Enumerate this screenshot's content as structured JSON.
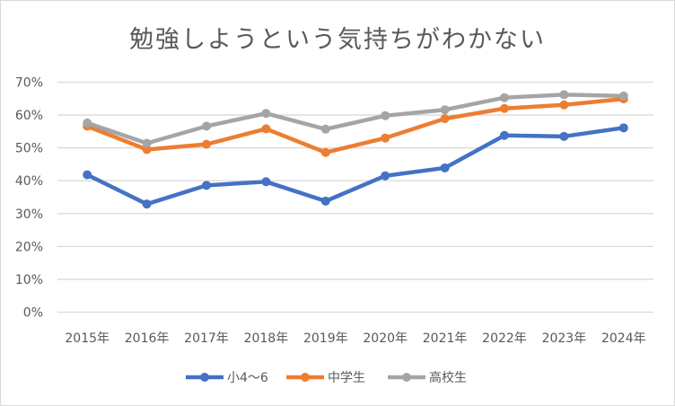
{
  "chart_data": {
    "type": "line",
    "title": "勉強しようという気持ちがわかない",
    "xlabel": "",
    "ylabel": "",
    "categories": [
      "2015年",
      "2016年",
      "2017年",
      "2018年",
      "2019年",
      "2020年",
      "2021年",
      "2022年",
      "2023年",
      "2024年"
    ],
    "ylim": [
      0,
      70
    ],
    "yticks": [
      "0%",
      "10%",
      "20%",
      "30%",
      "40%",
      "50%",
      "60%",
      "70%"
    ],
    "grid": true,
    "legend_position": "bottom",
    "series": [
      {
        "name": "小4〜6",
        "color": "#4472c4",
        "values": [
          41.8,
          32.9,
          38.6,
          39.7,
          33.8,
          41.5,
          43.9,
          53.8,
          53.5,
          56.1
        ]
      },
      {
        "name": "中学生",
        "color": "#ed7d31",
        "values": [
          56.6,
          49.5,
          51.1,
          55.8,
          48.6,
          53.0,
          58.9,
          62.0,
          63.1,
          64.9
        ]
      },
      {
        "name": "高校生",
        "color": "#a5a5a5",
        "values": [
          57.6,
          51.4,
          56.6,
          60.5,
          55.7,
          59.8,
          61.6,
          65.3,
          66.2,
          65.8
        ]
      }
    ]
  }
}
